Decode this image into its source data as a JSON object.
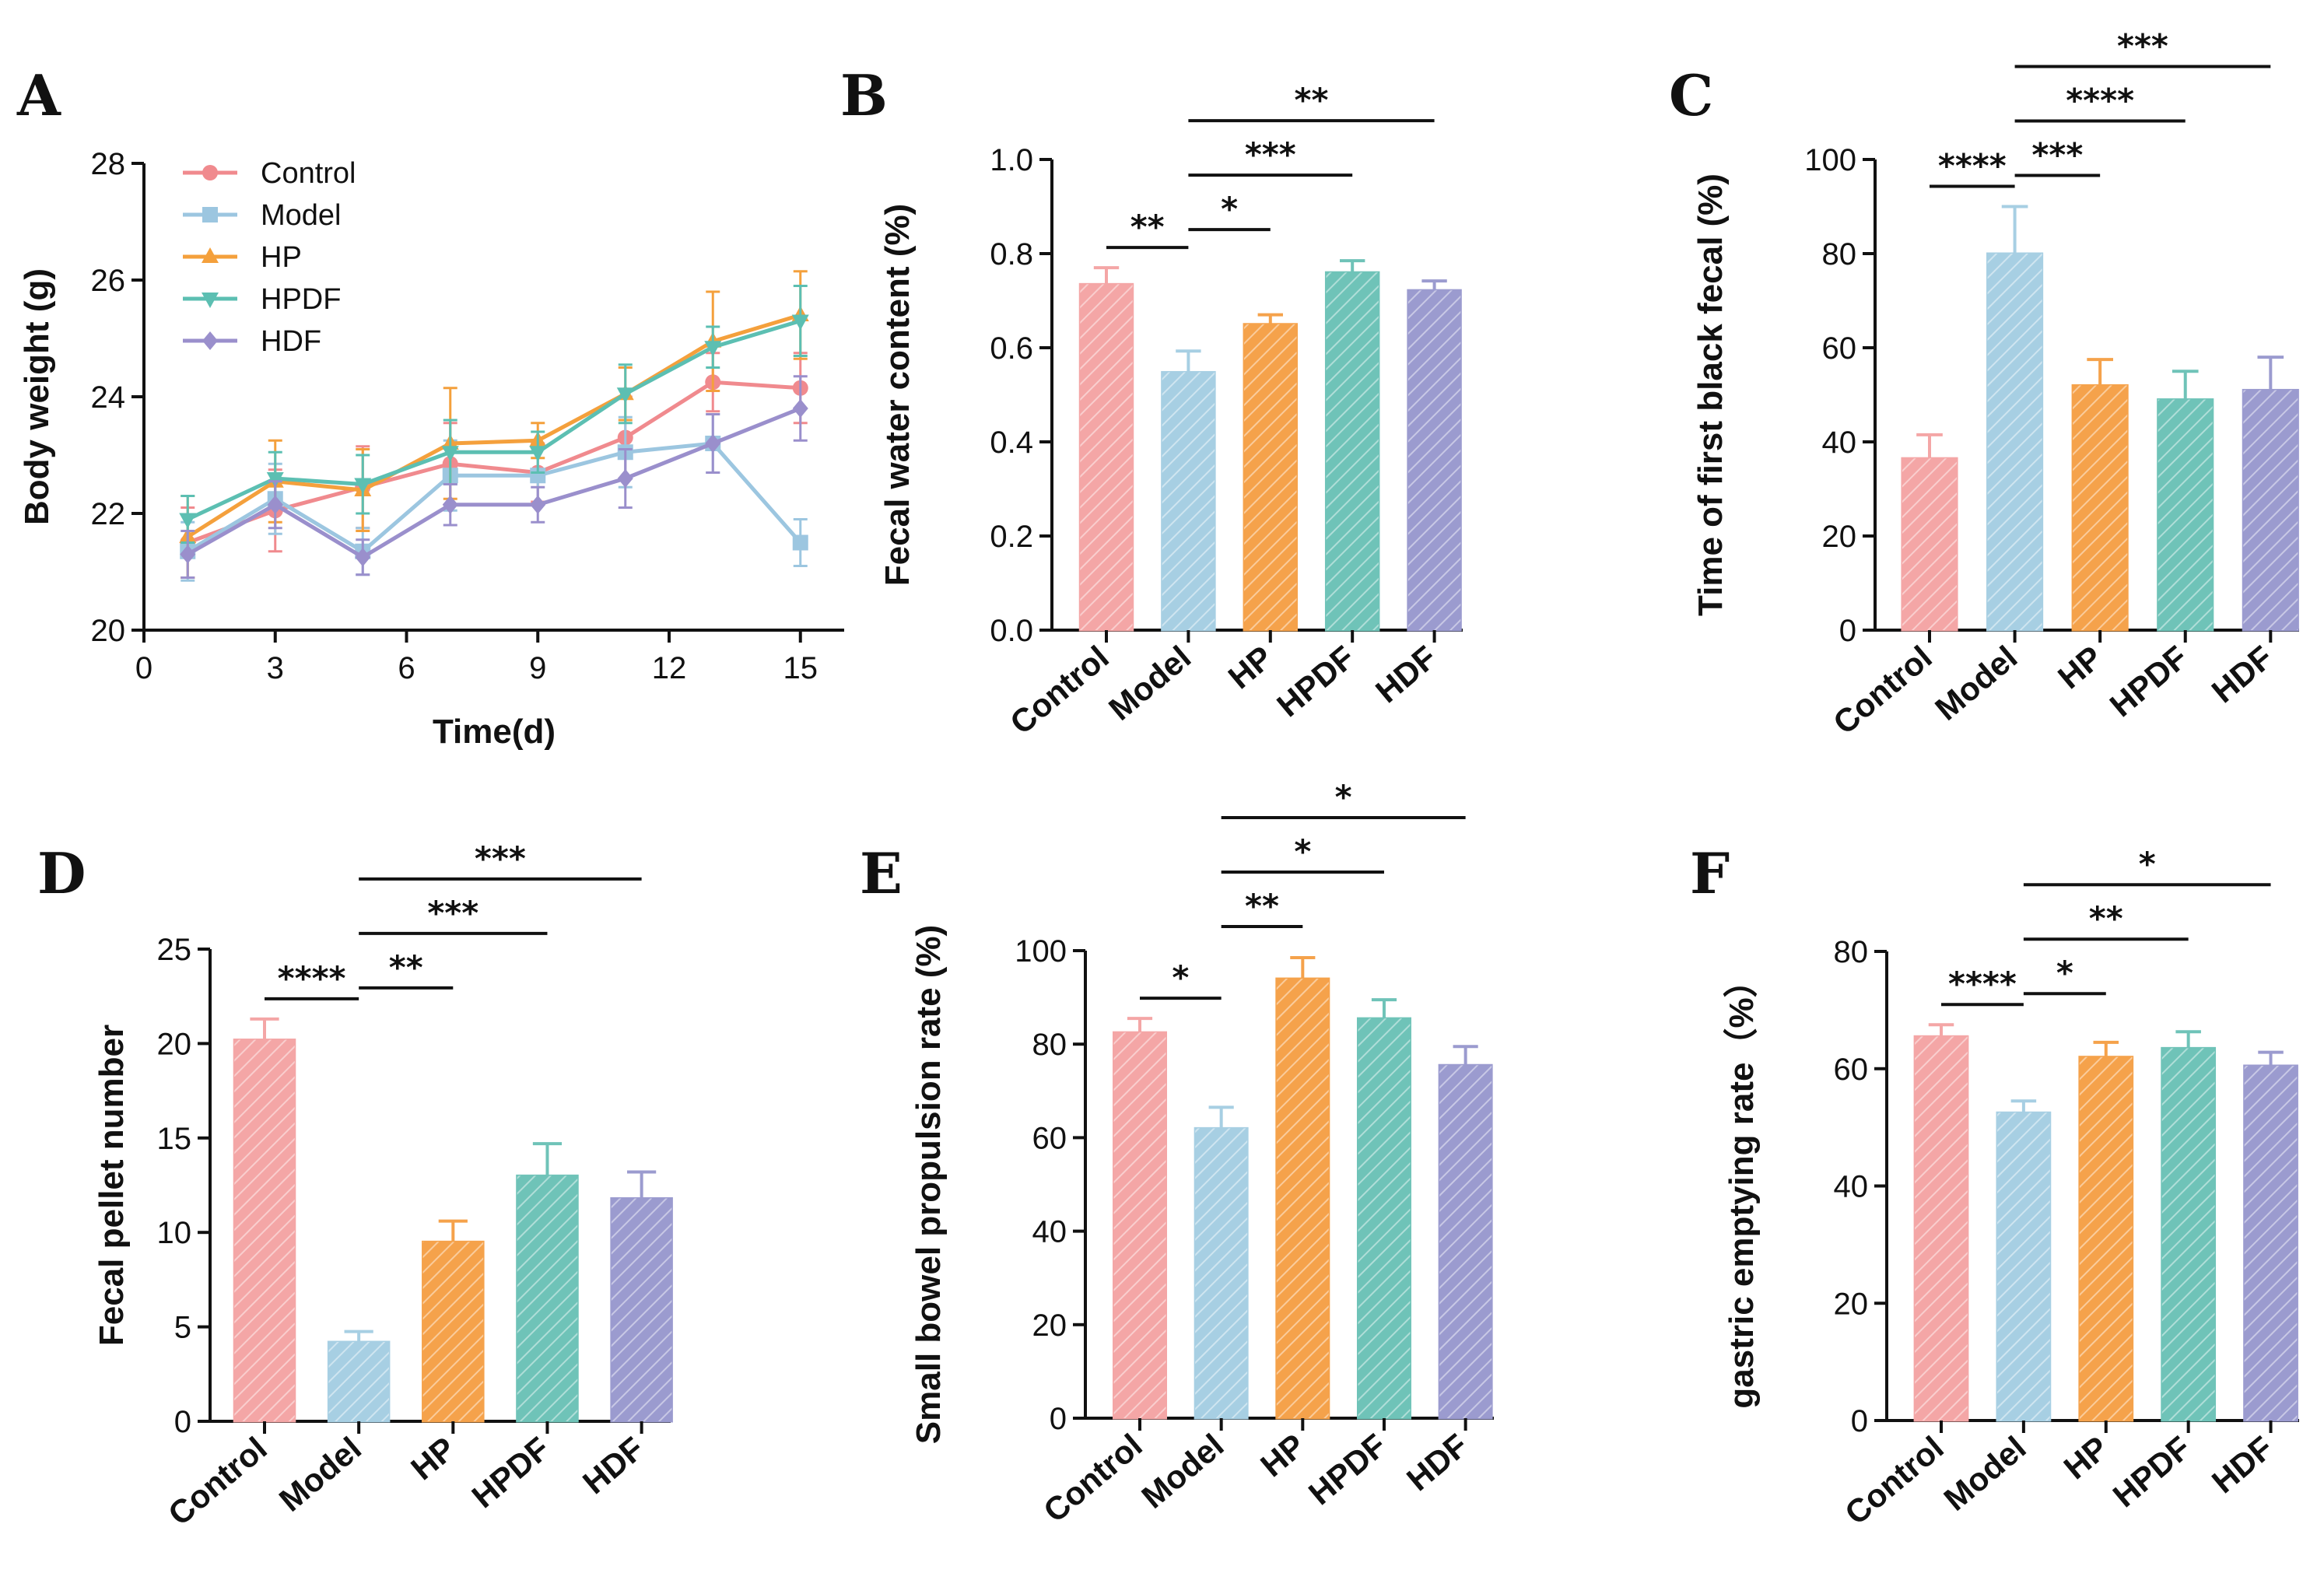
{
  "colors": {
    "Control": "#f4a6a6",
    "Model": "#a7cfe3",
    "HP": "#f5a24b",
    "HPDF": "#6fc3b8",
    "HDF": "#9b9bcf",
    "Control_line": "#f08a8e",
    "Model_line": "#9cc6e0",
    "HP_line": "#f4a03c",
    "HPDF_line": "#5cbfb2",
    "HDF_line": "#9a8fcc"
  },
  "chart_data": [
    {
      "panel": "A",
      "type": "line",
      "xlabel": "Time(d)",
      "ylabel": "Body weight (g)",
      "xlim": [
        0,
        16
      ],
      "ylim": [
        20,
        28
      ],
      "xticks": [
        "0",
        "3",
        "6",
        "9",
        "12",
        "15"
      ],
      "yticks": [
        "20",
        "22",
        "24",
        "26",
        "28"
      ],
      "x": [
        1,
        3,
        5,
        7,
        9,
        11,
        13,
        15
      ],
      "series": [
        {
          "name": "Control",
          "marker": "circle",
          "values": [
            21.5,
            22.05,
            22.45,
            22.85,
            22.7,
            23.3,
            24.25,
            24.15
          ],
          "errors": [
            0.6,
            0.7,
            0.7,
            0.7,
            0.5,
            0.7,
            0.5,
            0.6
          ]
        },
        {
          "name": "Model",
          "marker": "square",
          "values": [
            21.35,
            22.25,
            21.35,
            22.65,
            22.65,
            23.05,
            23.2,
            21.5
          ],
          "errors": [
            0.5,
            0.6,
            0.4,
            0.6,
            0.5,
            0.6,
            0.5,
            0.4
          ]
        },
        {
          "name": "HP",
          "marker": "triangle-up",
          "values": [
            21.6,
            22.55,
            22.4,
            23.2,
            23.25,
            24.05,
            24.95,
            25.4
          ],
          "errors": [
            0.7,
            0.7,
            0.7,
            0.95,
            0.3,
            0.45,
            0.85,
            0.75
          ]
        },
        {
          "name": "HPDF",
          "marker": "triangle-down",
          "values": [
            21.9,
            22.6,
            22.5,
            23.05,
            23.05,
            24.05,
            24.85,
            25.3
          ],
          "errors": [
            0.4,
            0.45,
            0.5,
            0.55,
            0.35,
            0.5,
            0.35,
            0.6
          ]
        },
        {
          "name": "HDF",
          "marker": "diamond",
          "values": [
            21.3,
            22.15,
            21.25,
            22.15,
            22.15,
            22.6,
            23.2,
            23.8
          ],
          "errors": [
            0.4,
            0.4,
            0.3,
            0.35,
            0.3,
            0.5,
            0.5,
            0.55
          ]
        }
      ],
      "legend": [
        "Control",
        "Model",
        "HP",
        "HPDF",
        "HDF"
      ],
      "legend_position": "top-left"
    },
    {
      "panel": "B",
      "type": "bar",
      "ylabel": "Fecal water content (%)",
      "ylim": [
        0,
        1.0
      ],
      "yticks": [
        "0.0",
        "0.2",
        "0.4",
        "0.6",
        "0.8",
        "1.0"
      ],
      "categories": [
        "Control",
        "Model",
        "HP",
        "HPDF",
        "HDF"
      ],
      "values": [
        0.735,
        0.548,
        0.65,
        0.76,
        0.722
      ],
      "errors": [
        0.035,
        0.045,
        0.02,
        0.025,
        0.02
      ],
      "significance": [
        {
          "from": 0,
          "to": 1,
          "label": "**",
          "level": 0
        },
        {
          "from": 1,
          "to": 2,
          "label": "*",
          "level": 0
        },
        {
          "from": 1,
          "to": 3,
          "label": "***",
          "level": 1
        },
        {
          "from": 1,
          "to": 4,
          "label": "**",
          "level": 2
        }
      ]
    },
    {
      "panel": "C",
      "type": "bar",
      "ylabel": "Time of first black fecal (%)",
      "ylim": [
        0,
        100
      ],
      "yticks": [
        "0",
        "20",
        "40",
        "60",
        "80",
        "100"
      ],
      "categories": [
        "Control",
        "Model",
        "HP",
        "HPDF",
        "HDF"
      ],
      "values": [
        36.5,
        80,
        52,
        49,
        51
      ],
      "errors": [
        5,
        10,
        5.5,
        6,
        7
      ],
      "significance": [
        {
          "from": 0,
          "to": 1,
          "label": "****",
          "level": 0
        },
        {
          "from": 1,
          "to": 2,
          "label": "***",
          "level": 0
        },
        {
          "from": 1,
          "to": 3,
          "label": "****",
          "level": 1
        },
        {
          "from": 1,
          "to": 4,
          "label": "***",
          "level": 2
        }
      ]
    },
    {
      "panel": "D",
      "type": "bar",
      "ylabel": "Fecal pellet number",
      "ylim": [
        0,
        25
      ],
      "yticks": [
        "0",
        "5",
        "10",
        "15",
        "20",
        "25"
      ],
      "categories": [
        "Control",
        "Model",
        "HP",
        "HPDF",
        "HDF"
      ],
      "values": [
        20.2,
        4.2,
        9.5,
        13,
        11.8
      ],
      "errors": [
        1.1,
        0.55,
        1.1,
        1.7,
        1.4
      ],
      "significance": [
        {
          "from": 0,
          "to": 1,
          "label": "****",
          "level": 0
        },
        {
          "from": 1,
          "to": 2,
          "label": "**",
          "level": 0
        },
        {
          "from": 1,
          "to": 3,
          "label": "***",
          "level": 1
        },
        {
          "from": 1,
          "to": 4,
          "label": "***",
          "level": 2
        }
      ]
    },
    {
      "panel": "E",
      "type": "bar",
      "ylabel": "Small bowel propulsion rate (%)",
      "ylim": [
        0,
        100
      ],
      "yticks": [
        "0",
        "20",
        "40",
        "60",
        "80",
        "100"
      ],
      "categories": [
        "Control",
        "Model",
        "HP",
        "HPDF",
        "HDF"
      ],
      "values": [
        82.5,
        62,
        94,
        85.5,
        75.5
      ],
      "errors": [
        3,
        4.5,
        4.5,
        4,
        4
      ],
      "significance": [
        {
          "from": 0,
          "to": 1,
          "label": "*",
          "level": 0
        },
        {
          "from": 1,
          "to": 2,
          "label": "**",
          "level": 0
        },
        {
          "from": 1,
          "to": 3,
          "label": "*",
          "level": 1
        },
        {
          "from": 1,
          "to": 4,
          "label": "*",
          "level": 2
        }
      ]
    },
    {
      "panel": "F",
      "type": "bar",
      "ylabel": "gastric emptying rate（%）",
      "ylim": [
        0,
        80
      ],
      "yticks": [
        "0",
        "20",
        "40",
        "60",
        "80"
      ],
      "categories": [
        "Control",
        "Model",
        "HP",
        "HPDF",
        "HDF"
      ],
      "values": [
        65.5,
        52.5,
        62,
        63.5,
        60.5
      ],
      "errors": [
        2,
        2,
        2.5,
        2.8,
        2.3
      ],
      "significance": [
        {
          "from": 0,
          "to": 1,
          "label": "****",
          "level": 0
        },
        {
          "from": 1,
          "to": 2,
          "label": "*",
          "level": 0
        },
        {
          "from": 1,
          "to": 3,
          "label": "**",
          "level": 1
        },
        {
          "from": 1,
          "to": 4,
          "label": "*",
          "level": 2
        }
      ]
    }
  ]
}
